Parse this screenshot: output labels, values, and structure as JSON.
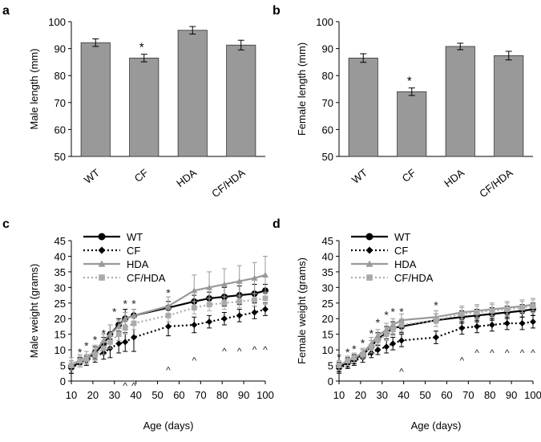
{
  "figure": {
    "panel_labels": [
      "a",
      "b",
      "c",
      "d"
    ]
  },
  "chart_data": [
    {
      "id": "a",
      "type": "bar",
      "label": "a",
      "categories": [
        "WT",
        "CF",
        "HDA",
        "CF/HDA"
      ],
      "values": [
        92.2,
        86.5,
        96.8,
        91.3
      ],
      "errors": [
        1.4,
        1.4,
        1.4,
        1.8
      ],
      "significance": [
        "",
        "*",
        "",
        ""
      ],
      "ylabel": "Male length (mm)",
      "xlabel": "",
      "ylim": [
        50,
        100
      ],
      "yticks": [
        50,
        60,
        70,
        80,
        90,
        100
      ],
      "bar_color": "#999999",
      "grid": false
    },
    {
      "id": "b",
      "type": "bar",
      "label": "b",
      "categories": [
        "WT",
        "CF",
        "HDA",
        "CF/HDA"
      ],
      "values": [
        86.5,
        74.0,
        90.8,
        87.4
      ],
      "errors": [
        1.6,
        1.4,
        1.2,
        1.6
      ],
      "significance": [
        "",
        "*",
        "",
        ""
      ],
      "ylabel": "Female length (mm)",
      "xlabel": "",
      "ylim": [
        50,
        100
      ],
      "yticks": [
        50,
        60,
        70,
        80,
        90,
        100
      ],
      "bar_color": "#999999",
      "grid": false
    },
    {
      "id": "c",
      "type": "line",
      "label": "c",
      "xlabel": "Age (days)",
      "ylabel": "Male weight (grams)",
      "xlim": [
        10,
        100
      ],
      "xticks": [
        10,
        20,
        30,
        40,
        50,
        60,
        70,
        80,
        90,
        100
      ],
      "ylim": [
        0,
        45
      ],
      "yticks": [
        0,
        5,
        10,
        15,
        20,
        25,
        30,
        35,
        40,
        45
      ],
      "legend_position": "top-left",
      "series": [
        {
          "name": "WT",
          "style": "solid",
          "color": "#000000",
          "marker": "circle",
          "x": [
            10,
            14,
            17,
            21,
            25,
            28,
            32,
            35,
            39,
            55,
            67,
            74,
            81,
            88,
            95,
            100
          ],
          "y": [
            4.5,
            6,
            7,
            9,
            12,
            15,
            18,
            20,
            21,
            23.5,
            25.5,
            26.5,
            27,
            27.5,
            28,
            29
          ],
          "err": [
            2,
            1.5,
            1.5,
            2,
            2,
            3,
            2,
            3,
            2,
            2,
            2,
            2,
            3,
            3,
            3,
            2
          ]
        },
        {
          "name": "CF",
          "style": "dotted",
          "color": "#000000",
          "marker": "diamond",
          "x": [
            10,
            14,
            17,
            21,
            25,
            28,
            32,
            35,
            39,
            55,
            67,
            74,
            81,
            88,
            95,
            100
          ],
          "y": [
            4,
            6,
            6.5,
            8,
            9,
            10.5,
            12,
            12.5,
            14,
            17.5,
            18,
            19,
            20,
            21,
            22,
            23
          ],
          "err": [
            1.5,
            1.5,
            1.5,
            2,
            2,
            3,
            3,
            3,
            4.5,
            3,
            2.5,
            2,
            2,
            2,
            2,
            2
          ]
        },
        {
          "name": "HDA",
          "style": "solid",
          "color": "#999999",
          "marker": "triangle",
          "x": [
            10,
            14,
            17,
            21,
            25,
            28,
            32,
            35,
            39,
            55,
            67,
            74,
            81,
            88,
            95,
            100
          ],
          "y": [
            5.5,
            6.5,
            7.5,
            9.5,
            13,
            15,
            17.5,
            20,
            21,
            24,
            29,
            30,
            31,
            32,
            33,
            34
          ],
          "err": [
            2,
            2,
            2,
            2,
            2,
            3,
            2,
            2,
            2,
            3,
            5,
            5,
            5,
            5,
            5,
            6
          ]
        },
        {
          "name": "CF/HDA",
          "style": "dotted",
          "color": "#aaaaaa",
          "marker": "square",
          "x": [
            10,
            14,
            17,
            21,
            25,
            28,
            32,
            35,
            39,
            55,
            67,
            74,
            81,
            88,
            95,
            100
          ],
          "y": [
            5,
            6.5,
            7,
            8.5,
            10.5,
            12.5,
            15,
            17,
            18.5,
            21,
            23.5,
            24.5,
            25,
            25.5,
            26,
            26.5
          ],
          "err": [
            1.5,
            1.5,
            1.5,
            2,
            2,
            2,
            2,
            2,
            2,
            2,
            2,
            2,
            2,
            2,
            2,
            2
          ]
        }
      ],
      "annotations": [
        {
          "text": "*",
          "x": 14,
          "y": 9
        },
        {
          "text": "*",
          "x": 17,
          "y": 11
        },
        {
          "text": "*",
          "x": 21,
          "y": 13
        },
        {
          "text": "*",
          "x": 25,
          "y": 15
        },
        {
          "text": "*",
          "x": 30,
          "y": 22
        },
        {
          "text": "*",
          "x": 35,
          "y": 24.5
        },
        {
          "text": "*",
          "x": 39,
          "y": 24.5
        },
        {
          "text": "*",
          "x": 55,
          "y": 28
        },
        {
          "text": "^",
          "x": 35,
          "y": -1.5
        },
        {
          "text": "^",
          "x": 39,
          "y": -1.5
        },
        {
          "text": "^",
          "x": 55,
          "y": 3.5
        },
        {
          "text": "^",
          "x": 67,
          "y": 6.5
        },
        {
          "text": "^",
          "x": 81,
          "y": 9.5
        },
        {
          "text": "^",
          "x": 88,
          "y": 9.5
        },
        {
          "text": "^",
          "x": 95,
          "y": 10
        },
        {
          "text": "^",
          "x": 100,
          "y": 10
        }
      ]
    },
    {
      "id": "d",
      "type": "line",
      "label": "d",
      "xlabel": "Age (days)",
      "ylabel": "Female weight (grams)",
      "xlim": [
        10,
        100
      ],
      "xticks": [
        10,
        20,
        30,
        40,
        50,
        60,
        70,
        80,
        90,
        100
      ],
      "ylim": [
        0,
        45
      ],
      "yticks": [
        0,
        5,
        10,
        15,
        20,
        25,
        30,
        35,
        40,
        45
      ],
      "legend_position": "top-left",
      "series": [
        {
          "name": "WT",
          "style": "solid",
          "color": "#000000",
          "marker": "circle",
          "x": [
            10,
            14,
            17,
            21,
            25,
            28,
            32,
            35,
            39,
            55,
            67,
            74,
            81,
            88,
            95,
            100
          ],
          "y": [
            4.5,
            6,
            7,
            8.5,
            11,
            13.5,
            15.5,
            17,
            17.5,
            19.5,
            20.5,
            21,
            21.5,
            22,
            22.5,
            23
          ],
          "err": [
            1.5,
            1.5,
            1.5,
            1.5,
            2,
            2,
            2,
            2,
            2,
            2,
            2,
            2,
            2,
            2,
            2,
            2
          ]
        },
        {
          "name": "CF",
          "style": "dotted",
          "color": "#000000",
          "marker": "diamond",
          "x": [
            10,
            14,
            17,
            21,
            25,
            28,
            32,
            35,
            39,
            55,
            67,
            74,
            81,
            88,
            95,
            100
          ],
          "y": [
            4,
            5.5,
            6.5,
            7.5,
            9,
            10,
            11,
            12,
            13,
            14,
            17,
            17.5,
            18,
            18.5,
            18.5,
            19
          ],
          "err": [
            1.5,
            1.5,
            1.5,
            1.5,
            1.5,
            1.5,
            2,
            2,
            2,
            2,
            2,
            2,
            2,
            2,
            2,
            2
          ]
        },
        {
          "name": "HDA",
          "style": "solid",
          "color": "#999999",
          "marker": "triangle",
          "x": [
            10,
            14,
            17,
            21,
            25,
            28,
            32,
            35,
            39,
            55,
            67,
            74,
            81,
            88,
            95,
            100
          ],
          "y": [
            5,
            6.5,
            7.5,
            9,
            12,
            14.5,
            16.5,
            18,
            19.5,
            20.5,
            22,
            22.5,
            23,
            23.5,
            24,
            24.5
          ],
          "err": [
            1.5,
            1.5,
            1.5,
            1.5,
            2,
            2,
            2,
            2,
            2,
            2,
            2,
            2,
            2,
            2,
            2,
            2
          ]
        },
        {
          "name": "CF/HDA",
          "style": "dotted",
          "color": "#aaaaaa",
          "marker": "square",
          "x": [
            10,
            14,
            17,
            21,
            25,
            28,
            32,
            35,
            39,
            55,
            67,
            74,
            81,
            88,
            95,
            100
          ],
          "y": [
            5,
            6.5,
            7.5,
            8.5,
            11,
            13,
            15,
            16.5,
            18,
            19.5,
            21.5,
            22,
            22.5,
            23,
            23.5,
            24
          ],
          "err": [
            1.5,
            1.5,
            1.5,
            1.5,
            2,
            2,
            2,
            2,
            2,
            2,
            2,
            2,
            2,
            2,
            2,
            2
          ]
        }
      ],
      "annotations": [
        {
          "text": "*",
          "x": 10,
          "y": 7.5
        },
        {
          "text": "*",
          "x": 14,
          "y": 9
        },
        {
          "text": "*",
          "x": 17,
          "y": 10
        },
        {
          "text": "*",
          "x": 21,
          "y": 12
        },
        {
          "text": "*",
          "x": 25,
          "y": 15
        },
        {
          "text": "*",
          "x": 28,
          "y": 18.5
        },
        {
          "text": "*",
          "x": 32,
          "y": 21
        },
        {
          "text": "*",
          "x": 35,
          "y": 22
        },
        {
          "text": "*",
          "x": 39,
          "y": 22
        },
        {
          "text": "*",
          "x": 55,
          "y": 24
        },
        {
          "text": "^",
          "x": 39,
          "y": 3
        },
        {
          "text": "^",
          "x": 67,
          "y": 6.5
        },
        {
          "text": "^",
          "x": 74,
          "y": 9
        },
        {
          "text": "^",
          "x": 81,
          "y": 9
        },
        {
          "text": "^",
          "x": 88,
          "y": 9
        },
        {
          "text": "^",
          "x": 95,
          "y": 9
        },
        {
          "text": "^",
          "x": 100,
          "y": 9
        }
      ]
    }
  ]
}
